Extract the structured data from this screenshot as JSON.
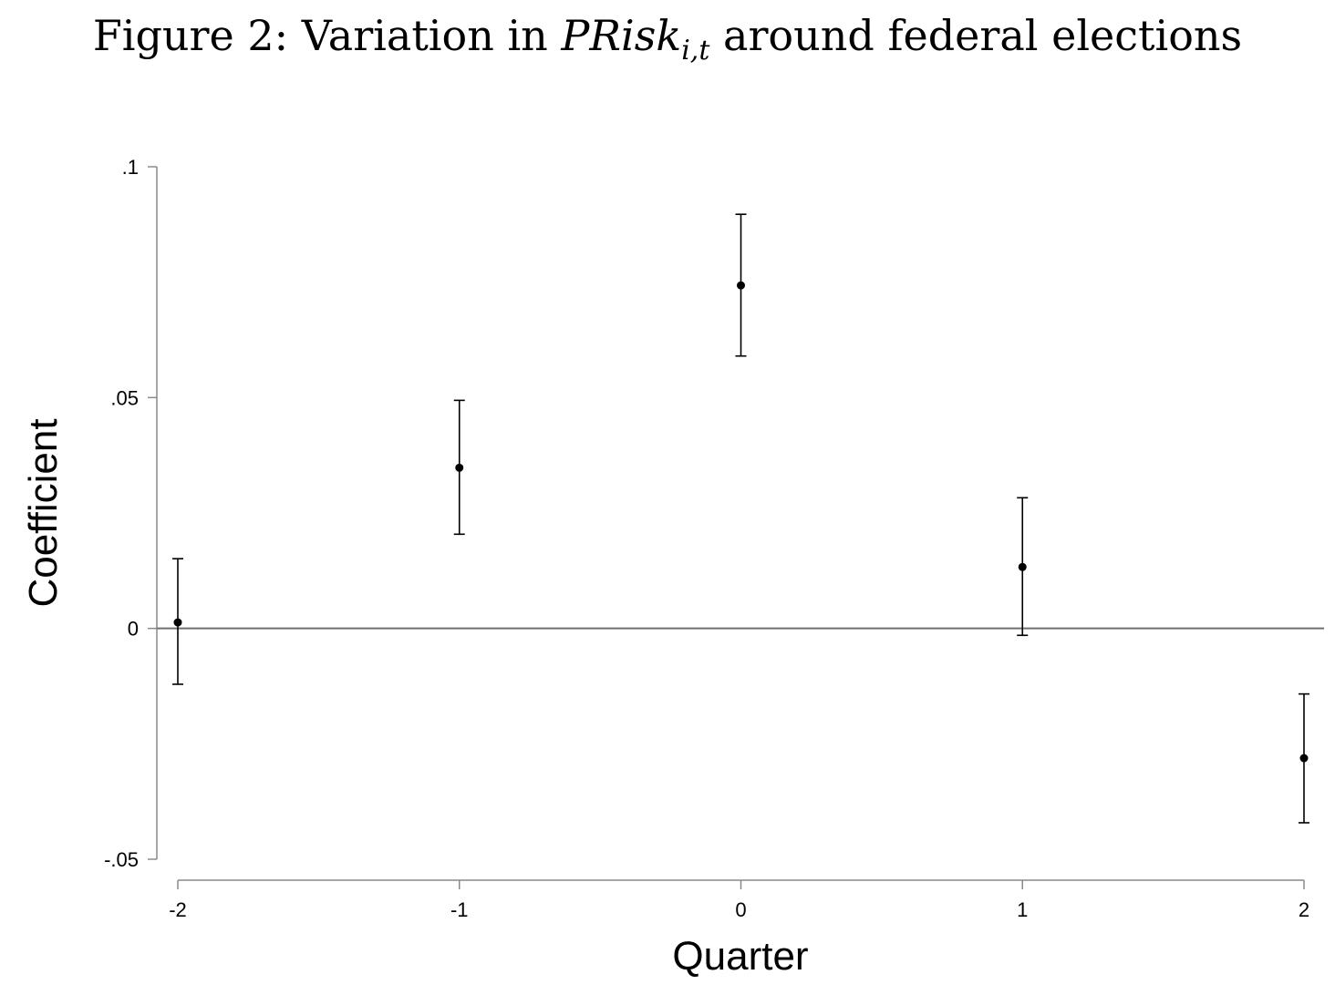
{
  "figure": {
    "title_prefix": "Figure 2: Variation in ",
    "title_math": "PRisk",
    "title_subscript": "i,t",
    "title_suffix": " around federal elections"
  },
  "chart_data": {
    "type": "scatter",
    "xlabel": "Quarter",
    "ylabel": "Coefficient",
    "xlim": [
      -2,
      2
    ],
    "ylim": [
      -0.05,
      0.1
    ],
    "x_ticks": [
      -2,
      -1,
      0,
      1,
      2
    ],
    "x_tick_labels": [
      "-2",
      "-1",
      "0",
      "1",
      "2"
    ],
    "y_ticks": [
      -0.05,
      0,
      0.05,
      0.1
    ],
    "y_tick_labels": [
      "-.05",
      "0",
      ".05",
      ".1"
    ],
    "reference_line_y": 0,
    "grid": false,
    "points": [
      {
        "x": -2,
        "y": 0.0013,
        "ci_low": -0.0121,
        "ci_high": 0.0151
      },
      {
        "x": -1,
        "y": 0.0348,
        "ci_low": 0.0204,
        "ci_high": 0.0494
      },
      {
        "x": 0,
        "y": 0.0743,
        "ci_low": 0.059,
        "ci_high": 0.0897
      },
      {
        "x": 1,
        "y": 0.0133,
        "ci_low": -0.0015,
        "ci_high": 0.0283
      },
      {
        "x": 2,
        "y": -0.0281,
        "ci_low": -0.0421,
        "ci_high": -0.0142
      }
    ]
  }
}
